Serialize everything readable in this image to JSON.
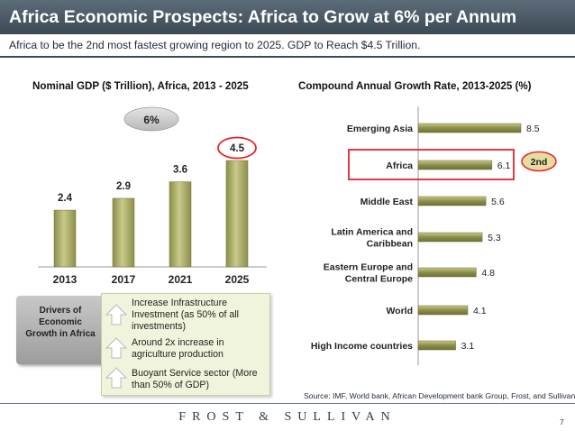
{
  "header": {
    "title": "Africa Economic Prospects: Africa to Grow at 6% per Annum",
    "subtitle": "Africa to be the  2nd most fastest  growing region to 2025. GDP to  Reach $4.5 Trillion."
  },
  "chart_data": [
    {
      "type": "bar",
      "title": "Nominal GDP ($ Trillion), Africa, 2013 - 2025",
      "categories": [
        "2013",
        "2017",
        "2021",
        "2025"
      ],
      "values": [
        2.4,
        2.9,
        3.6,
        4.5
      ],
      "value_labels": [
        "2.4",
        "2.9",
        "3.6",
        "4.5"
      ],
      "annotation": "6%",
      "highlight": "2025",
      "ylim": [
        0,
        4.5
      ],
      "grid": false
    },
    {
      "type": "bar",
      "orientation": "horizontal",
      "title": "Compound Annual Growth Rate, 2013-2025 (%)",
      "categories": [
        "Emerging Asia",
        "Africa",
        "Middle East",
        "Latin America and Caribbean",
        "Eastern Europe and Central Europe",
        "World",
        "High Income countries"
      ],
      "category_lines": [
        [
          "Emerging Asia"
        ],
        [
          "Africa"
        ],
        [
          "Middle East"
        ],
        [
          "Latin America and",
          "Caribbean"
        ],
        [
          "Eastern Europe and",
          "Central Europe"
        ],
        [
          "World"
        ],
        [
          "High Income countries"
        ]
      ],
      "values": [
        8.5,
        6.1,
        5.6,
        5.3,
        4.8,
        4.1,
        3.1
      ],
      "value_labels": [
        "8.5",
        "6.1",
        "5.6",
        "5.3",
        "4.8",
        "4.1",
        "3.1"
      ],
      "highlight": "Africa",
      "highlight_badge": "2nd",
      "xlim": [
        0,
        8.5
      ],
      "grid": false
    }
  ],
  "drivers": {
    "label": "Drivers of Economic Growth in Africa",
    "label_lines": [
      "Drivers of",
      "Economic",
      "Growth in Africa"
    ],
    "items": [
      {
        "lines": [
          "Increase Infrastructure",
          "Investment (as 50% of all",
          "investments)"
        ]
      },
      {
        "lines": [
          "Around 2x increase in",
          "agriculture production"
        ]
      },
      {
        "lines": [
          "Buoyant Service sector (More",
          "than 50% of GDP)"
        ]
      }
    ]
  },
  "source": "Source: IMF, World bank, African Development bank Group, Frost, and Sullivan.",
  "footer": {
    "brand": "FROST & SULLIVAN",
    "page_number": "7"
  },
  "colors": {
    "bar_fill": "#8c8e4a",
    "bar_light": "#c9c98a",
    "highlight": "#e0262b",
    "badge_fill": "#e7dca0",
    "title_bar": "#4a5864"
  }
}
